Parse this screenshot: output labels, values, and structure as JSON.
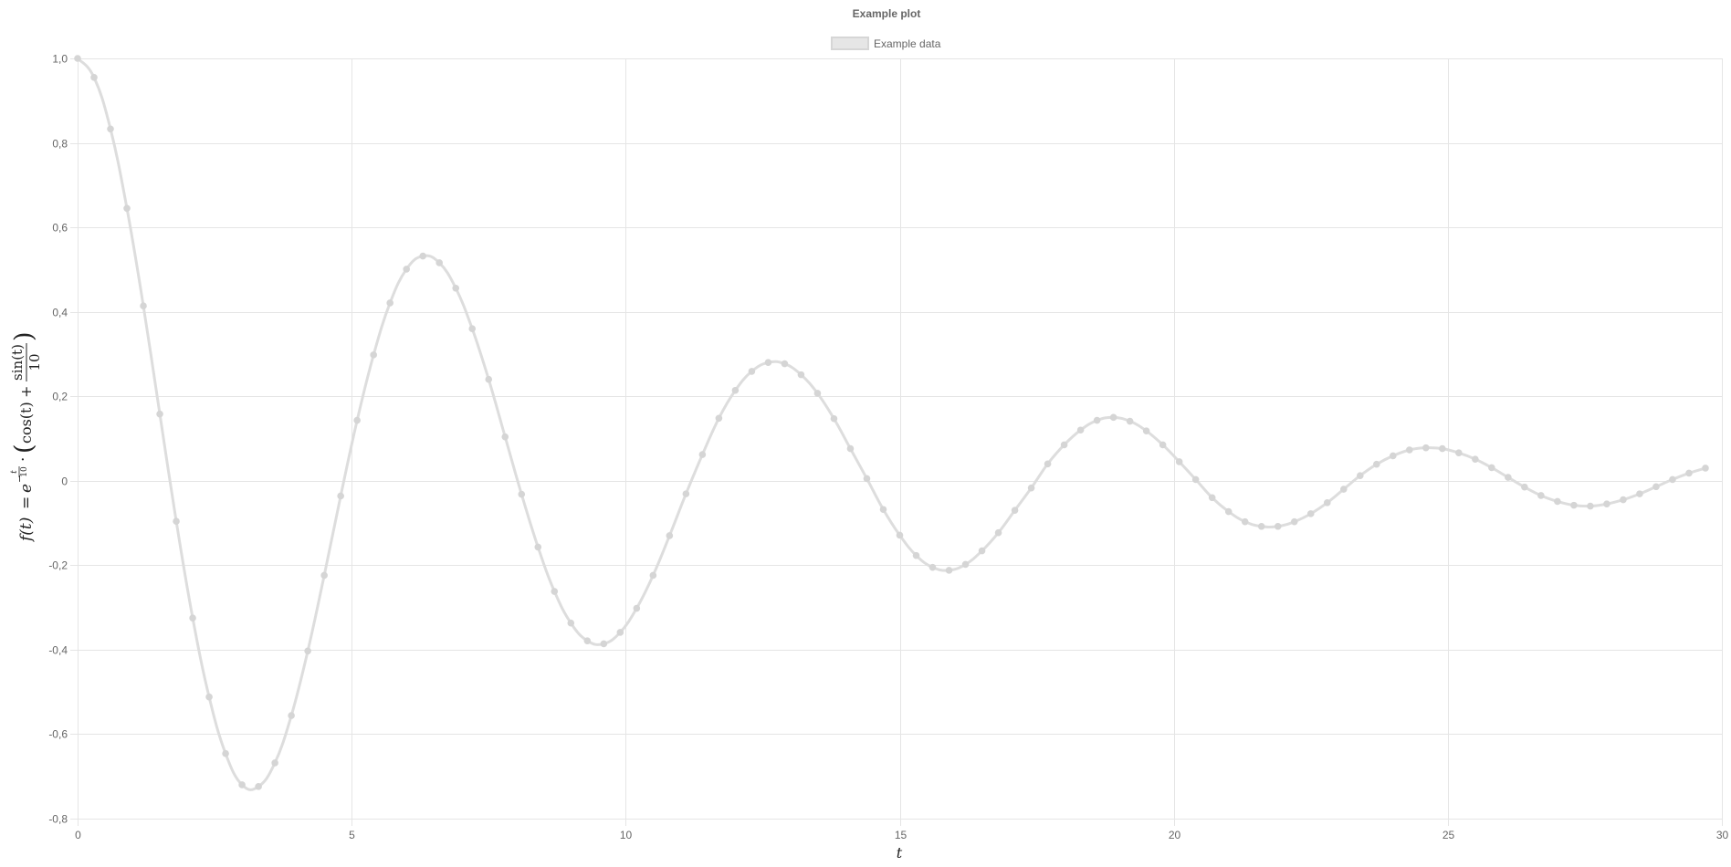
{
  "chart_data": {
    "type": "line",
    "title": "Example plot",
    "legend": {
      "position": "top-center",
      "entries": [
        "Example data"
      ]
    },
    "grid": true,
    "xlabel": "t",
    "ylabel": "f(t) = e^(-t/10) · (cos(t) + sin(t)/10)",
    "ylabel_parts": {
      "lhs": "f(t)",
      "eq": "=",
      "base": "e",
      "exp_sign": "−",
      "exp_num": "t",
      "exp_den": "10",
      "dot": "·",
      "lpar": "(",
      "cos": "cos(t)",
      "plus": "+",
      "frac_num": "sin(t)",
      "frac_den": "10",
      "rpar": ")"
    },
    "xlim": [
      0,
      30
    ],
    "ylim": [
      -0.8,
      1.0
    ],
    "x_ticks": [
      "0",
      "5",
      "10",
      "15",
      "20",
      "25",
      "30"
    ],
    "y_ticks": [
      "1,0",
      "0,8",
      "0,6",
      "0,4",
      "0,2",
      "0",
      "-0,2",
      "-0,4",
      "-0,6",
      "-0,8"
    ],
    "colors": {
      "line": "#dddddd",
      "point": "#d5d5d5",
      "legend_fill": "#e6e6e6",
      "legend_border": "#d6d6d6"
    },
    "series": [
      {
        "name": "Example data",
        "x": [
          0,
          0.3,
          0.6,
          0.9,
          1.2,
          1.5,
          1.8,
          2.1,
          2.4,
          2.7,
          3.0,
          3.3,
          3.6,
          3.9,
          4.2,
          4.5,
          4.8,
          5.1,
          5.4,
          5.7,
          6.0,
          6.3,
          6.6,
          6.9,
          7.2,
          7.5,
          7.8,
          8.1,
          8.4,
          8.7,
          9.0,
          9.3,
          9.6,
          9.9,
          10.2,
          10.5,
          10.8,
          11.1,
          11.4,
          11.7,
          12.0,
          12.3,
          12.6,
          12.9,
          13.2,
          13.5,
          13.8,
          14.1,
          14.4,
          14.7,
          15.0,
          15.3,
          15.6,
          15.9,
          16.2,
          16.5,
          16.8,
          17.1,
          17.4,
          17.7,
          18.0,
          18.3,
          18.6,
          18.9,
          19.2,
          19.5,
          19.8,
          20.1,
          20.4,
          20.7,
          21.0,
          21.3,
          21.6,
          21.9,
          22.2,
          22.5,
          22.8,
          23.1,
          23.4,
          23.7,
          24.0,
          24.3,
          24.6,
          24.9,
          25.2,
          25.5,
          25.8,
          26.1,
          26.4,
          26.7,
          27.0,
          27.3,
          27.6,
          27.9,
          28.2,
          28.5,
          28.8,
          29.1,
          29.4,
          29.7
        ],
        "y": [
          1.0,
          0.955,
          0.833,
          0.645,
          0.414,
          0.158,
          -0.096,
          -0.325,
          -0.512,
          -0.646,
          -0.72,
          -0.724,
          -0.668,
          -0.556,
          -0.403,
          -0.224,
          -0.036,
          0.143,
          0.298,
          0.421,
          0.501,
          0.532,
          0.516,
          0.456,
          0.36,
          0.24,
          0.104,
          -0.032,
          -0.157,
          -0.262,
          -0.337,
          -0.379,
          -0.386,
          -0.359,
          -0.302,
          -0.224,
          -0.13,
          -0.031,
          0.062,
          0.148,
          0.214,
          0.259,
          0.28,
          0.277,
          0.251,
          0.207,
          0.147,
          0.076,
          0.005,
          -0.068,
          -0.129,
          -0.177,
          -0.205,
          -0.212,
          -0.198,
          -0.166,
          -0.123,
          -0.07,
          -0.017,
          0.04,
          0.085,
          0.12,
          0.143,
          0.15,
          0.141,
          0.118,
          0.085,
          0.045,
          0.003,
          -0.04,
          -0.073,
          -0.097,
          -0.108,
          -0.108,
          -0.097,
          -0.078,
          -0.052,
          -0.02,
          0.012,
          0.039,
          0.059,
          0.073,
          0.078,
          0.076,
          0.066,
          0.051,
          0.031,
          0.008,
          -0.015,
          -0.035,
          -0.049,
          -0.058,
          -0.06,
          -0.055,
          -0.045,
          -0.031,
          -0.014,
          0.003,
          0.018,
          0.03
        ]
      }
    ]
  }
}
